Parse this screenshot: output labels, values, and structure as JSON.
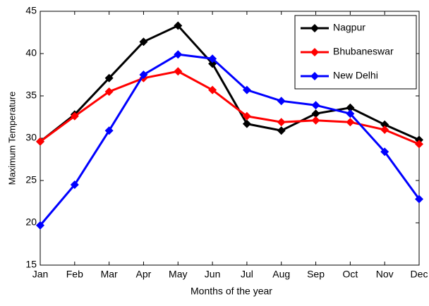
{
  "chart_data": {
    "type": "line",
    "xlabel": "Months of the year",
    "ylabel": "Maximum Temperature",
    "categories": [
      "Jan",
      "Feb",
      "Mar",
      "Apr",
      "May",
      "Jun",
      "Jul",
      "Aug",
      "Sep",
      "Oct",
      "Nov",
      "Dec"
    ],
    "series": [
      {
        "name": "Nagpur",
        "color": "#000000",
        "values": [
          29.6,
          32.8,
          37.1,
          41.4,
          43.3,
          38.8,
          31.7,
          30.9,
          32.9,
          33.6,
          31.6,
          29.8
        ]
      },
      {
        "name": "Bhubaneswar",
        "color": "#ff0000",
        "values": [
          29.6,
          32.6,
          35.5,
          37.1,
          37.9,
          35.7,
          32.6,
          31.9,
          32.1,
          31.9,
          31.0,
          29.3
        ]
      },
      {
        "name": "New Delhi",
        "color": "#0000ff",
        "values": [
          19.7,
          24.5,
          30.9,
          37.5,
          39.9,
          39.4,
          35.7,
          34.4,
          33.9,
          32.9,
          28.4,
          22.8
        ]
      }
    ],
    "ylim": [
      15,
      45
    ],
    "yticks": [
      15,
      20,
      25,
      30,
      35,
      40,
      45
    ],
    "legend": "top-right",
    "grid": false
  }
}
